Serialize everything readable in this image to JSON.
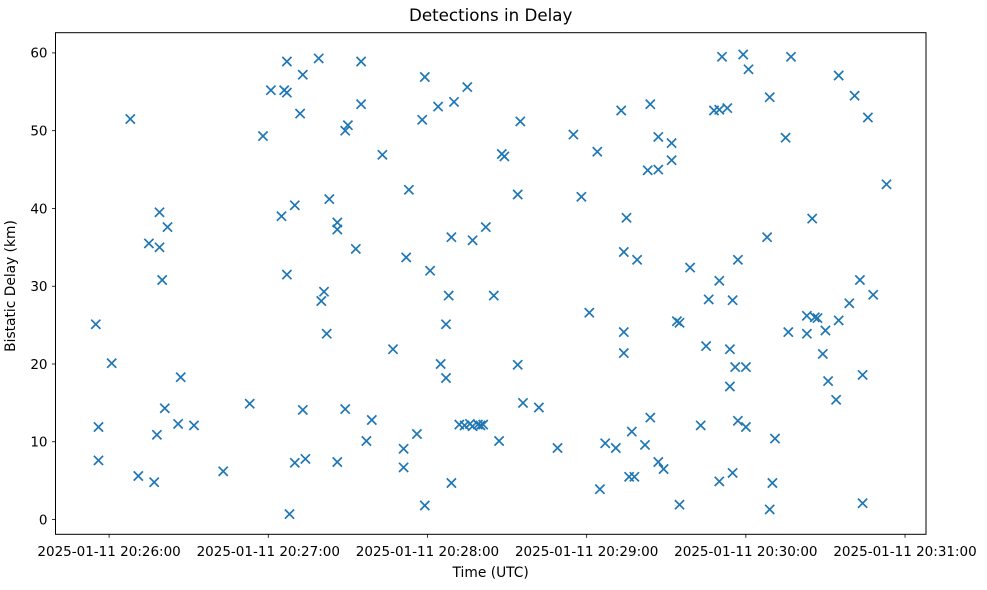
{
  "chart_data": {
    "type": "scatter",
    "title": "Detections in Delay",
    "xlabel": "Time (UTC)",
    "ylabel": "Bistatic Delay (km)",
    "date": "2025-01-11",
    "marker": "x",
    "marker_color": "#1f77b4",
    "axis_color": "#000000",
    "background": "#ffffff",
    "grid": false,
    "legend": null,
    "x_tick_labels": [
      "2025-01-11 20:26:00",
      "2025-01-11 20:27:00",
      "2025-01-11 20:28:00",
      "2025-01-11 20:29:00",
      "2025-01-11 20:30:00",
      "2025-01-11 20:31:00"
    ],
    "x_tick_offsets_s": [
      0,
      60,
      120,
      180,
      240,
      300
    ],
    "x_range_s": [
      -20.2,
      307.9
    ],
    "y_ticks": [
      0,
      10,
      20,
      30,
      40,
      50,
      60
    ],
    "y_range": [
      -1.9,
      62.6
    ],
    "points_format": [
      "time_utc",
      "bistatic_delay_km"
    ],
    "points": [
      [
        "20:27:07",
        58.9
      ],
      [
        "20:27:19",
        59.3
      ],
      [
        "20:27:35",
        58.9
      ],
      [
        "20:27:13",
        57.2
      ],
      [
        "20:27:01",
        55.2
      ],
      [
        "20:27:06",
        55.2
      ],
      [
        "20:27:07",
        54.9
      ],
      [
        "20:27:35",
        53.4
      ],
      [
        "20:26:08",
        51.5
      ],
      [
        "20:27:12",
        52.2
      ],
      [
        "20:27:30",
        50.7
      ],
      [
        "20:27:29",
        50.0
      ],
      [
        "20:26:58",
        49.3
      ],
      [
        "20:27:23",
        41.2
      ],
      [
        "20:27:10",
        40.4
      ],
      [
        "20:27:05",
        39.0
      ],
      [
        "20:26:19",
        39.5
      ],
      [
        "20:26:22",
        37.6
      ],
      [
        "20:27:26",
        38.2
      ],
      [
        "20:27:26",
        37.3
      ],
      [
        "20:26:15",
        35.5
      ],
      [
        "20:26:19",
        35.0
      ],
      [
        "20:27:33",
        34.8
      ],
      [
        "20:27:07",
        31.5
      ],
      [
        "20:26:20",
        30.8
      ],
      [
        "20:27:59",
        56.9
      ],
      [
        "20:28:15",
        55.6
      ],
      [
        "20:28:10",
        53.7
      ],
      [
        "20:28:04",
        53.1
      ],
      [
        "20:27:58",
        51.4
      ],
      [
        "20:28:35",
        51.2
      ],
      [
        "20:29:13",
        52.6
      ],
      [
        "20:29:24",
        53.4
      ],
      [
        "20:28:55",
        49.5
      ],
      [
        "20:29:27",
        49.2
      ],
      [
        "20:29:04",
        47.3
      ],
      [
        "20:29:32",
        48.4
      ],
      [
        "20:29:32",
        46.2
      ],
      [
        "20:27:43",
        46.9
      ],
      [
        "20:28:28",
        47.0
      ],
      [
        "20:28:29",
        46.7
      ],
      [
        "20:29:23",
        44.9
      ],
      [
        "20:29:27",
        45.0
      ],
      [
        "20:27:53",
        42.4
      ],
      [
        "20:28:34",
        41.8
      ],
      [
        "20:28:58",
        41.5
      ],
      [
        "20:29:15",
        38.8
      ],
      [
        "20:28:22",
        37.6
      ],
      [
        "20:28:09",
        36.3
      ],
      [
        "20:28:17",
        35.9
      ],
      [
        "20:27:52",
        33.7
      ],
      [
        "20:28:01",
        32.0
      ],
      [
        "20:29:14",
        34.4
      ],
      [
        "20:29:19",
        33.4
      ],
      [
        "20:29:51",
        59.5
      ],
      [
        "20:29:59",
        59.8
      ],
      [
        "20:30:17",
        59.5
      ],
      [
        "20:30:01",
        57.9
      ],
      [
        "20:30:35",
        57.1
      ],
      [
        "20:30:09",
        54.3
      ],
      [
        "20:30:41",
        54.5
      ],
      [
        "20:29:48",
        52.6
      ],
      [
        "20:29:50",
        52.7
      ],
      [
        "20:29:53",
        52.9
      ],
      [
        "20:30:46",
        51.7
      ],
      [
        "20:30:15",
        49.1
      ],
      [
        "20:30:53",
        43.1
      ],
      [
        "20:30:25",
        38.7
      ],
      [
        "20:30:08",
        36.3
      ],
      [
        "20:29:57",
        33.4
      ],
      [
        "20:29:39",
        32.4
      ],
      [
        "20:29:50",
        30.7
      ],
      [
        "20:30:43",
        30.8
      ],
      [
        "20:27:21",
        29.3
      ],
      [
        "20:27:20",
        28.1
      ],
      [
        "20:25:55",
        25.1
      ],
      [
        "20:27:22",
        23.9
      ],
      [
        "20:26:01",
        20.1
      ],
      [
        "20:26:27",
        18.3
      ],
      [
        "20:26:53",
        14.9
      ],
      [
        "20:26:21",
        14.3
      ],
      [
        "20:27:13",
        14.1
      ],
      [
        "20:27:29",
        14.2
      ],
      [
        "20:25:56",
        11.9
      ],
      [
        "20:26:26",
        12.3
      ],
      [
        "20:26:32",
        12.1
      ],
      [
        "20:26:18",
        10.9
      ],
      [
        "20:25:56",
        7.6
      ],
      [
        "20:27:10",
        7.3
      ],
      [
        "20:27:14",
        7.8
      ],
      [
        "20:27:26",
        7.4
      ],
      [
        "20:26:11",
        5.6
      ],
      [
        "20:26:17",
        4.8
      ],
      [
        "20:26:43",
        6.2
      ],
      [
        "20:27:08",
        0.7
      ],
      [
        "20:28:08",
        28.8
      ],
      [
        "20:28:25",
        28.8
      ],
      [
        "20:29:01",
        26.6
      ],
      [
        "20:28:07",
        25.1
      ],
      [
        "20:29:14",
        24.1
      ],
      [
        "20:27:47",
        21.9
      ],
      [
        "20:29:14",
        21.4
      ],
      [
        "20:28:05",
        20.0
      ],
      [
        "20:28:34",
        19.9
      ],
      [
        "20:28:07",
        18.2
      ],
      [
        "20:28:36",
        15.0
      ],
      [
        "20:28:42",
        14.4
      ],
      [
        "20:28:12",
        12.2
      ],
      [
        "20:28:14",
        12.1
      ],
      [
        "20:28:16",
        12.3
      ],
      [
        "20:28:17",
        12.0
      ],
      [
        "20:28:19",
        12.2
      ],
      [
        "20:28:20",
        12.1
      ],
      [
        "20:28:21",
        12.2
      ],
      [
        "20:27:39",
        12.8
      ],
      [
        "20:27:37",
        10.1
      ],
      [
        "20:27:56",
        11.0
      ],
      [
        "20:27:51",
        9.1
      ],
      [
        "20:28:27",
        10.1
      ],
      [
        "20:28:49",
        9.2
      ],
      [
        "20:27:51",
        6.7
      ],
      [
        "20:29:07",
        9.8
      ],
      [
        "20:29:11",
        9.2
      ],
      [
        "20:29:17",
        11.3
      ],
      [
        "20:29:24",
        13.1
      ],
      [
        "20:29:22",
        9.6
      ],
      [
        "20:29:27",
        7.4
      ],
      [
        "20:29:29",
        6.5
      ],
      [
        "20:29:16",
        5.5
      ],
      [
        "20:29:18",
        5.5
      ],
      [
        "20:29:05",
        3.9
      ],
      [
        "20:28:09",
        4.7
      ],
      [
        "20:27:59",
        1.8
      ],
      [
        "20:29:46",
        28.3
      ],
      [
        "20:29:55",
        28.2
      ],
      [
        "20:30:48",
        28.9
      ],
      [
        "20:30:39",
        27.8
      ],
      [
        "20:29:34",
        25.5
      ],
      [
        "20:29:35",
        25.3
      ],
      [
        "20:30:23",
        26.2
      ],
      [
        "20:30:26",
        26.0
      ],
      [
        "20:30:27",
        25.9
      ],
      [
        "20:30:35",
        25.6
      ],
      [
        "20:30:16",
        24.1
      ],
      [
        "20:30:23",
        23.9
      ],
      [
        "20:30:30",
        24.3
      ],
      [
        "20:30:29",
        21.3
      ],
      [
        "20:29:45",
        22.3
      ],
      [
        "20:29:54",
        21.9
      ],
      [
        "20:29:56",
        19.6
      ],
      [
        "20:30:00",
        19.6
      ],
      [
        "20:29:54",
        17.1
      ],
      [
        "20:30:44",
        18.6
      ],
      [
        "20:30:31",
        17.8
      ],
      [
        "20:30:34",
        15.4
      ],
      [
        "20:29:43",
        12.1
      ],
      [
        "20:29:57",
        12.7
      ],
      [
        "20:30:00",
        11.9
      ],
      [
        "20:30:11",
        10.4
      ],
      [
        "20:29:55",
        6.0
      ],
      [
        "20:29:50",
        4.9
      ],
      [
        "20:30:10",
        4.7
      ],
      [
        "20:29:35",
        1.9
      ],
      [
        "20:30:44",
        2.1
      ],
      [
        "20:30:09",
        1.3
      ]
    ]
  }
}
